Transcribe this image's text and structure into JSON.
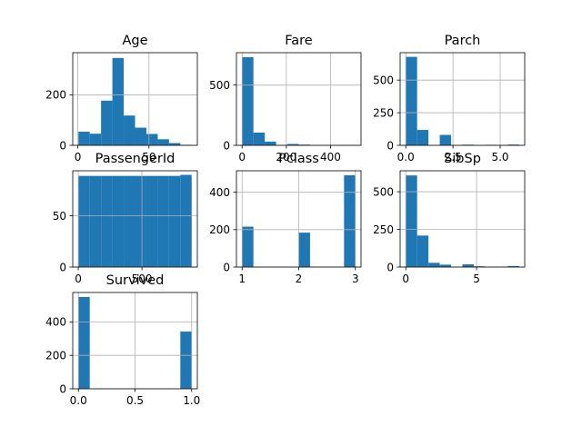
{
  "bar_color": "#1f77b4",
  "chart_data": [
    {
      "type": "bar",
      "title": "Age",
      "xlim": [
        -3.55,
        83.95
      ],
      "ylim": [
        0,
        367
      ],
      "xticks": [
        0,
        50
      ],
      "yticks": [
        0,
        200
      ],
      "bin_edges": [
        0.42,
        8.378,
        16.336,
        24.294,
        32.252,
        40.21,
        48.168,
        56.126,
        64.084,
        72.042,
        80.0
      ],
      "values": [
        54,
        46,
        177,
        346,
        118,
        70,
        45,
        24,
        9,
        2
      ]
    },
    {
      "type": "bar",
      "title": "Fare",
      "xlim": [
        -25.6,
        537.9
      ],
      "ylim": [
        0,
        769
      ],
      "xticks": [
        0,
        200,
        400
      ],
      "yticks": [
        0,
        500
      ],
      "bin_edges": [
        0,
        51.23,
        102.47,
        153.7,
        204.93,
        256.16,
        307.4,
        358.63,
        409.86,
        461.09,
        512.33
      ],
      "values": [
        732,
        106,
        31,
        2,
        11,
        6,
        0,
        0,
        0,
        3
      ]
    },
    {
      "type": "bar",
      "title": "Parch",
      "xlim": [
        -0.3,
        6.3
      ],
      "ylim": [
        0,
        710
      ],
      "xticks": [
        0.0,
        2.5,
        5.0
      ],
      "yticks": [
        0,
        250,
        500
      ],
      "bin_edges": [
        0,
        0.6,
        1.2,
        1.8,
        2.4,
        3.0,
        3.6,
        4.2,
        4.8,
        5.4,
        6.0
      ],
      "values": [
        678,
        118,
        0,
        80,
        0,
        5,
        0,
        4,
        0,
        6
      ]
    },
    {
      "type": "bar",
      "title": "PassengerId",
      "xlim": [
        -43.5,
        935.5
      ],
      "ylim": [
        0,
        94
      ],
      "xticks": [
        0,
        500
      ],
      "yticks": [
        0,
        50
      ],
      "bin_edges": [
        1,
        90,
        179,
        268,
        357,
        446,
        535,
        624,
        713,
        802,
        891
      ],
      "values": [
        89,
        89,
        89,
        89,
        89,
        89,
        89,
        89,
        89,
        90
      ]
    },
    {
      "type": "bar",
      "title": "Pclass",
      "xlim": [
        0.9,
        3.1
      ],
      "ylim": [
        0,
        515
      ],
      "xticks": [
        1,
        2,
        3
      ],
      "yticks": [
        0,
        200,
        400
      ],
      "bin_edges": [
        1.0,
        1.2,
        1.4,
        1.6,
        1.8,
        2.0,
        2.2,
        2.4,
        2.6,
        2.8,
        3.0
      ],
      "values": [
        216,
        0,
        0,
        0,
        0,
        184,
        0,
        0,
        0,
        491
      ]
    },
    {
      "type": "bar",
      "title": "SibSp",
      "xlim": [
        -0.4,
        8.4
      ],
      "ylim": [
        0,
        639
      ],
      "xticks": [
        0,
        5
      ],
      "yticks": [
        0,
        250,
        500
      ],
      "bin_edges": [
        0,
        0.8,
        1.6,
        2.4,
        3.2,
        4.0,
        4.8,
        5.6,
        6.4,
        7.2,
        8.0
      ],
      "values": [
        608,
        209,
        28,
        16,
        0,
        18,
        5,
        0,
        0,
        7
      ]
    },
    {
      "type": "bar",
      "title": "Survived",
      "xlim": [
        -0.05,
        1.05
      ],
      "ylim": [
        0,
        576
      ],
      "xticks": [
        0.0,
        0.5,
        1.0
      ],
      "yticks": [
        0,
        200,
        400
      ],
      "bin_edges": [
        0,
        0.1,
        0.2,
        0.3,
        0.4,
        0.5,
        0.6,
        0.7,
        0.8,
        0.9,
        1.0
      ],
      "values": [
        549,
        0,
        0,
        0,
        0,
        0,
        0,
        0,
        0,
        342
      ]
    }
  ]
}
